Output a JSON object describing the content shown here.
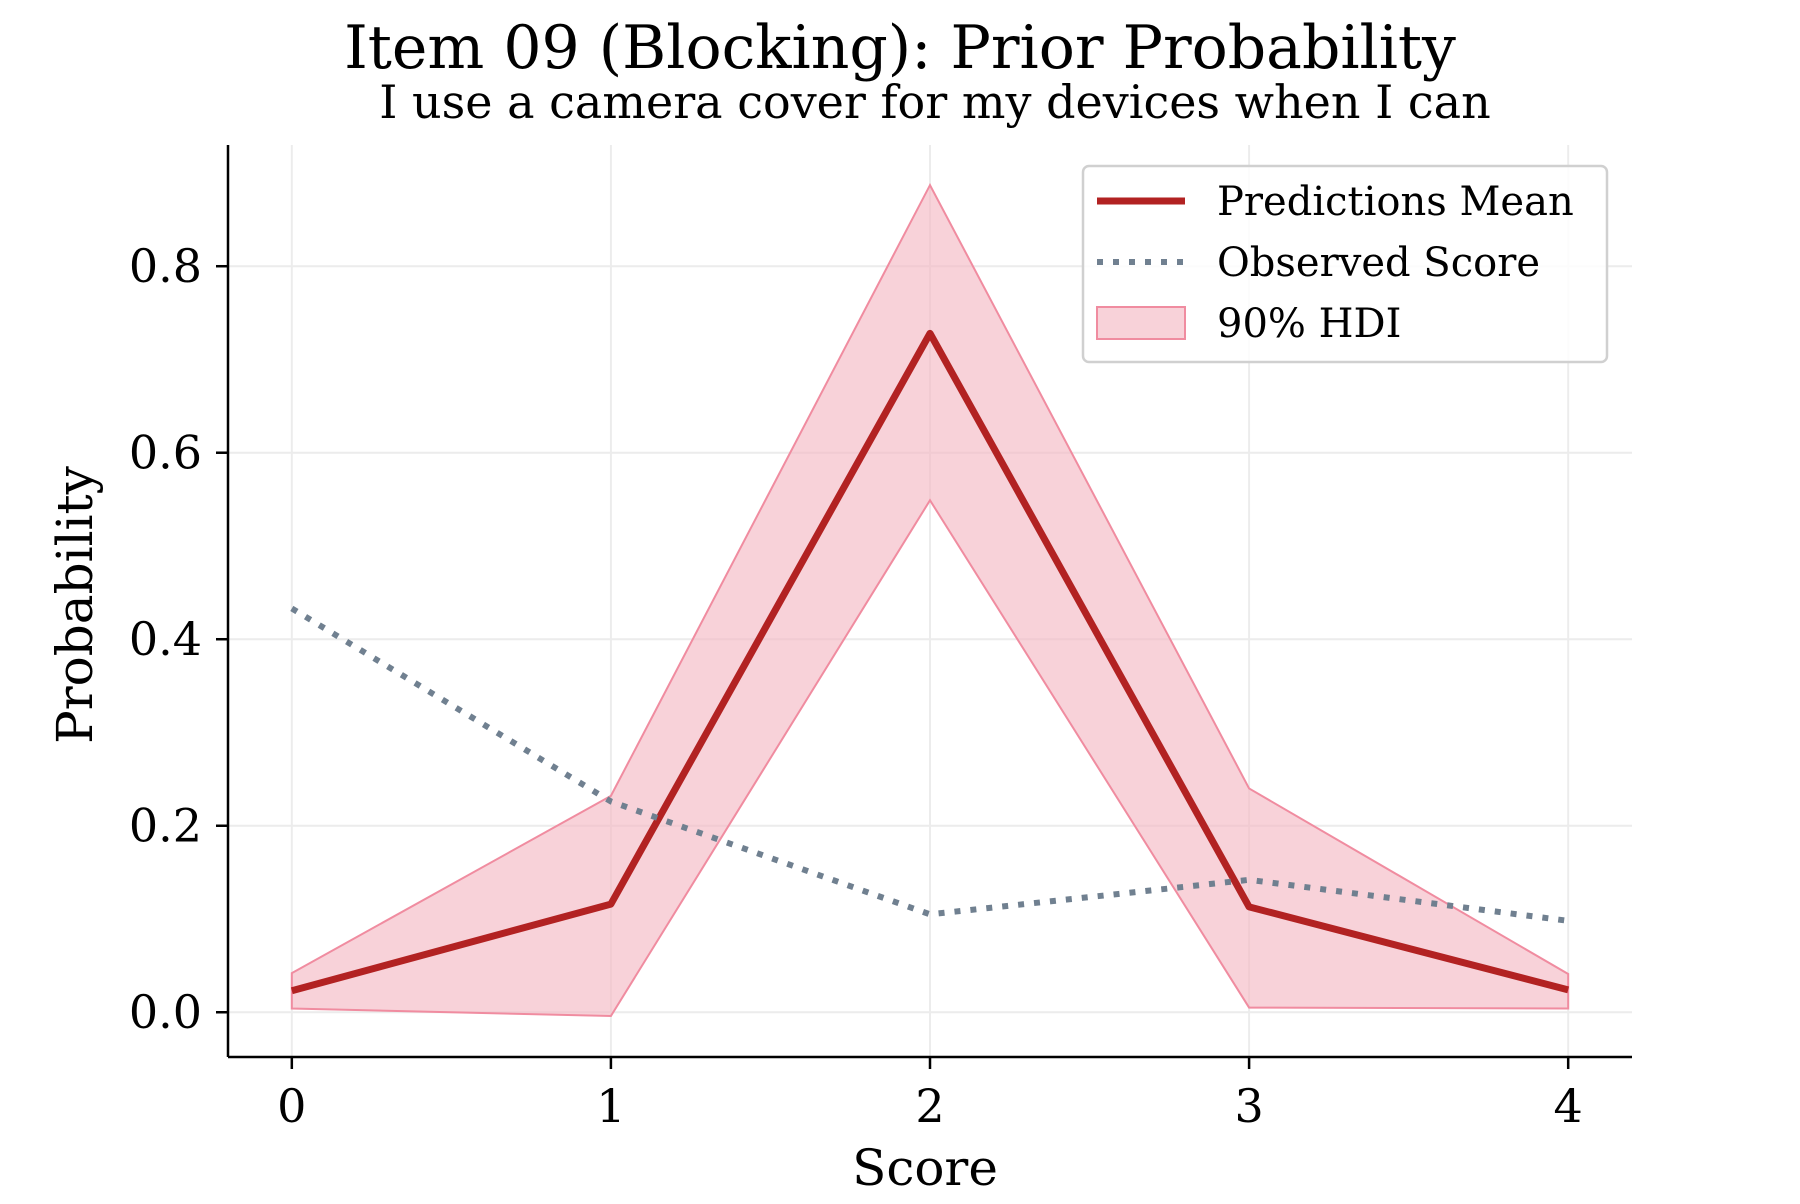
{
  "chart_data": {
    "type": "line",
    "title": "Item 09 (Blocking): Prior Probability",
    "subtitle": "I use a camera cover for my devices when I can",
    "xlabel": "Score",
    "ylabel": "Probability",
    "x": [
      0,
      1,
      2,
      3,
      4
    ],
    "xlim": [
      -0.2,
      4.2
    ],
    "ylim": [
      -0.048,
      0.93
    ],
    "x_ticks": [
      0,
      1,
      2,
      3,
      4
    ],
    "y_ticks": [
      0.0,
      0.2,
      0.4,
      0.6,
      0.8
    ],
    "x_tick_labels": [
      "0",
      "1",
      "2",
      "3",
      "4"
    ],
    "y_tick_labels": [
      "0.0",
      "0.2",
      "0.4",
      "0.6",
      "0.8"
    ],
    "grid": true,
    "legend_position": "top-right",
    "series": [
      {
        "name": "Predictions Mean",
        "style": "solid",
        "color": "#b22222",
        "values": [
          0.023,
          0.116,
          0.728,
          0.113,
          0.024
        ]
      },
      {
        "name": "Observed Score",
        "style": "dotted",
        "color": "#708090",
        "values": [
          0.433,
          0.226,
          0.105,
          0.142,
          0.098
        ]
      }
    ],
    "band": {
      "name": "90% HDI",
      "fill_color": "#f4b6c2",
      "edge_color": "#f08ca0",
      "lower": [
        0.004,
        -0.004,
        0.549,
        0.005,
        0.004
      ],
      "upper": [
        0.042,
        0.232,
        0.887,
        0.24,
        0.041
      ]
    }
  }
}
